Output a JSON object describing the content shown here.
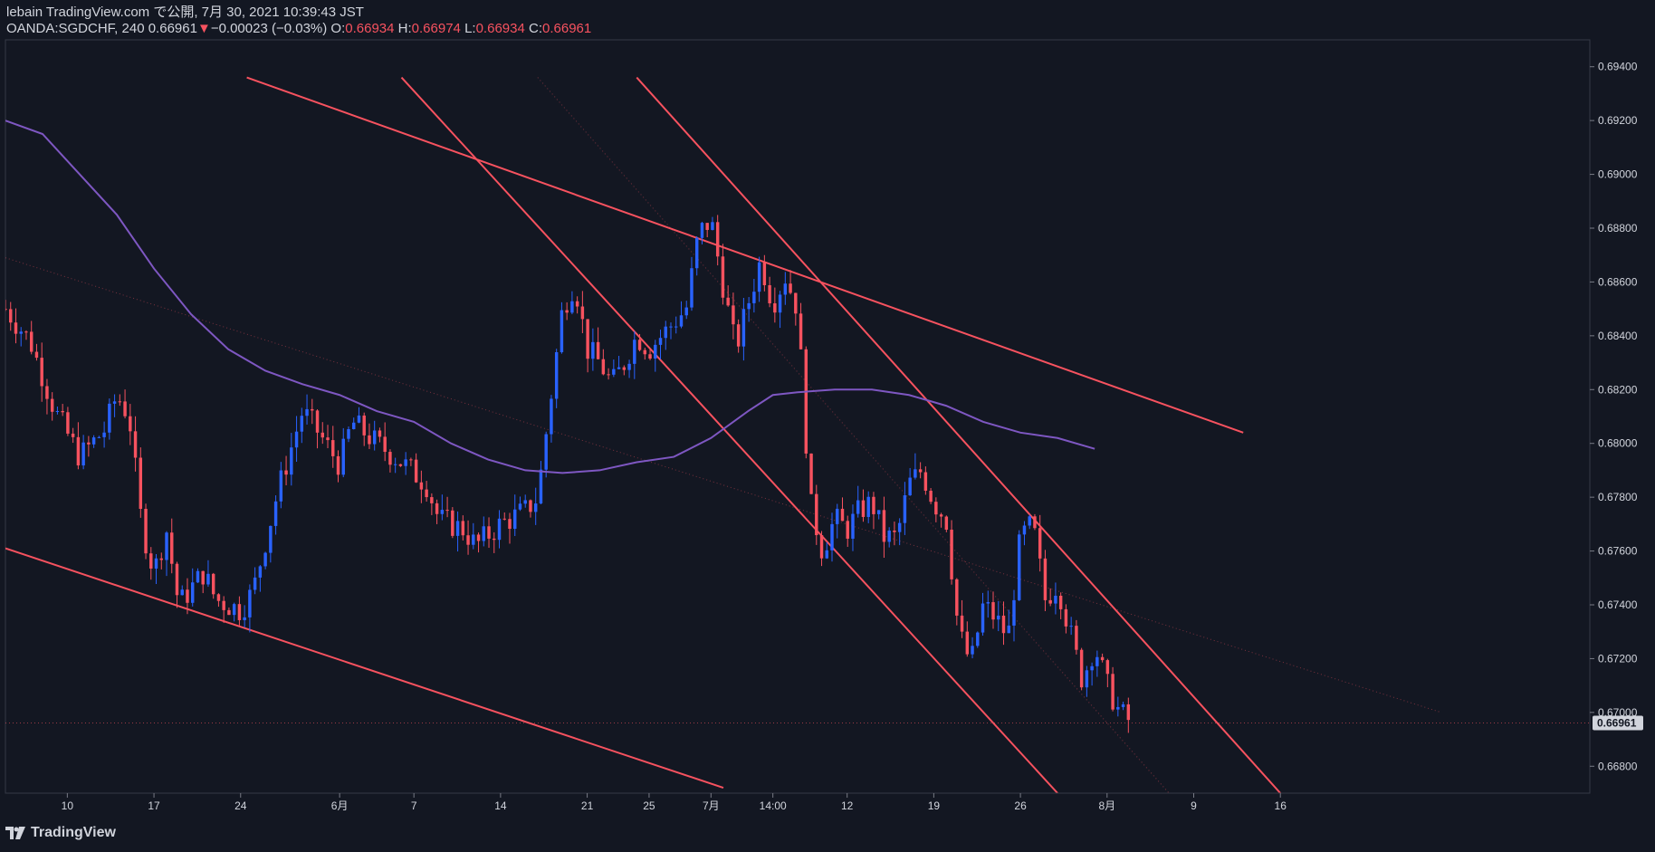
{
  "header": {
    "line1": "lebain TradingView.com で公開, 7月 30, 2021 10:39:43 JST",
    "symbol": "OANDA:SGDCHF, 240",
    "last": "0.66961",
    "change_arrow": "▼",
    "change": "−0.00023 (−0.03%)",
    "o_label": "O:",
    "o_value": "0.66934",
    "h_label": "H:",
    "h_value": "0.66974",
    "l_label": "L:",
    "l_value": "0.66934",
    "c_label": "C:",
    "c_value": "0.66961"
  },
  "footer": {
    "brand": "TradingView"
  },
  "colors": {
    "background": "#131722",
    "up": "#2962ff",
    "down": "#f7525f",
    "trendline": "#f7525f",
    "moving_average": "#7e57c2",
    "grid": "#363a45",
    "text": "#d1d4dc"
  },
  "chart_data": {
    "type": "candlestick",
    "title": "OANDA:SGDCHF, 240",
    "xlabel": "",
    "ylabel": "",
    "ylim": [
      0.667,
      0.695
    ],
    "y_ticks": [
      "0.69400",
      "0.69200",
      "0.69000",
      "0.68800",
      "0.68600",
      "0.68400",
      "0.68200",
      "0.68000",
      "0.67800",
      "0.67600",
      "0.67400",
      "0.67200",
      "0.67000",
      "0.66800"
    ],
    "y_tick_values": [
      0.694,
      0.692,
      0.69,
      0.688,
      0.686,
      0.684,
      0.682,
      0.68,
      0.678,
      0.676,
      0.674,
      0.672,
      0.67,
      0.668
    ],
    "x_range_days": [
      0,
      128
    ],
    "x_ticks": [
      {
        "label": "10",
        "day": 5
      },
      {
        "label": "17",
        "day": 12
      },
      {
        "label": "24",
        "day": 19
      },
      {
        "label": "6月",
        "day": 27
      },
      {
        "label": "7",
        "day": 33
      },
      {
        "label": "14",
        "day": 40
      },
      {
        "label": "21",
        "day": 47
      },
      {
        "label": "25",
        "day": 52
      },
      {
        "label": "7月",
        "day": 57
      },
      {
        "label": "14:00",
        "day": 62
      },
      {
        "label": "12",
        "day": 68
      },
      {
        "label": "19",
        "day": 75
      },
      {
        "label": "26",
        "day": 82
      },
      {
        "label": "8月",
        "day": 89
      },
      {
        "label": "9",
        "day": 96
      },
      {
        "label": "16",
        "day": 103
      }
    ],
    "current_price": 0.66961,
    "current_price_label": "0.66961",
    "anchors": [
      [
        0,
        0.685
      ],
      [
        2,
        0.6838
      ],
      [
        4,
        0.6812
      ],
      [
        6,
        0.6795
      ],
      [
        8,
        0.6805
      ],
      [
        9,
        0.6818
      ],
      [
        10,
        0.681
      ],
      [
        11,
        0.677
      ],
      [
        12,
        0.6752
      ],
      [
        13,
        0.6768
      ],
      [
        14,
        0.674
      ],
      [
        16,
        0.6752
      ],
      [
        17,
        0.6742
      ],
      [
        19,
        0.6738
      ],
      [
        20,
        0.6745
      ],
      [
        22,
        0.6782
      ],
      [
        24,
        0.6812
      ],
      [
        25,
        0.6806
      ],
      [
        27,
        0.6792
      ],
      [
        28,
        0.6808
      ],
      [
        30,
        0.68
      ],
      [
        32,
        0.6793
      ],
      [
        34,
        0.6785
      ],
      [
        35,
        0.6772
      ],
      [
        37,
        0.6768
      ],
      [
        38,
        0.6762
      ],
      [
        40,
        0.677
      ],
      [
        42,
        0.6775
      ],
      [
        43,
        0.678
      ],
      [
        44,
        0.6815
      ],
      [
        45,
        0.685
      ],
      [
        46,
        0.686
      ],
      [
        47,
        0.6835
      ],
      [
        48,
        0.683
      ],
      [
        49,
        0.6822
      ],
      [
        50,
        0.683
      ],
      [
        51,
        0.684
      ],
      [
        52,
        0.6835
      ],
      [
        54,
        0.6845
      ],
      [
        55,
        0.685
      ],
      [
        56,
        0.6878
      ],
      [
        57,
        0.6883
      ],
      [
        58,
        0.6858
      ],
      [
        59,
        0.6835
      ],
      [
        60,
        0.6852
      ],
      [
        61,
        0.6868
      ],
      [
        62,
        0.6852
      ],
      [
        63,
        0.6862
      ],
      [
        64,
        0.685
      ],
      [
        65,
        0.6778
      ],
      [
        66,
        0.676
      ],
      [
        67,
        0.6772
      ],
      [
        68,
        0.6768
      ],
      [
        69,
        0.6775
      ],
      [
        70,
        0.6778
      ],
      [
        71,
        0.6765
      ],
      [
        72,
        0.6765
      ],
      [
        73,
        0.6785
      ],
      [
        74,
        0.679
      ],
      [
        75,
        0.6778
      ],
      [
        76,
        0.6772
      ],
      [
        77,
        0.673
      ],
      [
        78,
        0.6718
      ],
      [
        79,
        0.674
      ],
      [
        80,
        0.6735
      ],
      [
        81,
        0.6728
      ],
      [
        82,
        0.6765
      ],
      [
        83,
        0.677
      ],
      [
        84,
        0.6742
      ],
      [
        85,
        0.6748
      ],
      [
        86,
        0.673
      ],
      [
        87,
        0.6712
      ],
      [
        88,
        0.6725
      ],
      [
        89,
        0.671
      ],
      [
        90,
        0.67
      ],
      [
        91,
        0.6696
      ]
    ],
    "moving_average": [
      [
        0,
        0.692
      ],
      [
        3,
        0.6915
      ],
      [
        6,
        0.69
      ],
      [
        9,
        0.6885
      ],
      [
        12,
        0.6865
      ],
      [
        15,
        0.6848
      ],
      [
        18,
        0.6835
      ],
      [
        21,
        0.6827
      ],
      [
        24,
        0.6822
      ],
      [
        27,
        0.6818
      ],
      [
        30,
        0.6812
      ],
      [
        33,
        0.6808
      ],
      [
        36,
        0.68
      ],
      [
        39,
        0.6794
      ],
      [
        42,
        0.679
      ],
      [
        45,
        0.6789
      ],
      [
        48,
        0.679
      ],
      [
        51,
        0.6793
      ],
      [
        54,
        0.6795
      ],
      [
        57,
        0.6802
      ],
      [
        60,
        0.6812
      ],
      [
        62,
        0.6818
      ],
      [
        64,
        0.6819
      ],
      [
        67,
        0.682
      ],
      [
        70,
        0.682
      ],
      [
        73,
        0.6818
      ],
      [
        76,
        0.6814
      ],
      [
        79,
        0.6808
      ],
      [
        82,
        0.6804
      ],
      [
        85,
        0.6802
      ],
      [
        88,
        0.6798
      ]
    ],
    "trendlines": [
      {
        "name": "upper-channel-line",
        "style": "solid",
        "p1": [
          19.5,
          0.6936
        ],
        "p2": [
          100,
          0.6804
        ]
      },
      {
        "name": "lower-channel-line",
        "style": "solid",
        "p1": [
          0,
          0.6761
        ],
        "p2": [
          58,
          0.6672
        ]
      },
      {
        "name": "falling-line-1",
        "style": "solid",
        "p1": [
          32,
          0.6936
        ],
        "p2": [
          85,
          0.667
        ]
      },
      {
        "name": "falling-line-2",
        "style": "solid",
        "p1": [
          51,
          0.6936
        ],
        "p2": [
          103,
          0.667
        ]
      },
      {
        "name": "dotted-midline",
        "style": "dotted",
        "p1": [
          0,
          0.6869
        ],
        "p2": [
          116,
          0.67
        ]
      },
      {
        "name": "dotted-steep-line",
        "style": "dotted",
        "p1": [
          43,
          0.6936
        ],
        "p2": [
          94,
          0.667
        ]
      }
    ]
  }
}
